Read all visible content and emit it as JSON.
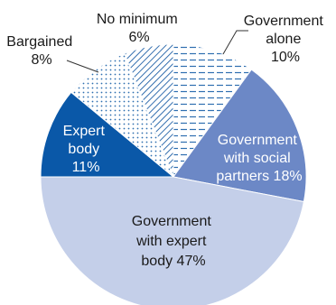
{
  "chart_data": {
    "type": "pie",
    "title": "",
    "slices": [
      {
        "name": "Government alone",
        "value": 10,
        "label_lines": [
          "Government",
          "alone",
          "10%"
        ],
        "pattern": "horizontal-dashes",
        "fill": "#ffffff",
        "ink": "#2f6fb0",
        "text_color": "#1a1a1a"
      },
      {
        "name": "Government with social partners",
        "value": 18,
        "label_lines": [
          "Government",
          "with social",
          "partners 18%"
        ],
        "pattern": "solid",
        "fill": "#6c88c6",
        "ink": "#6c88c6",
        "text_color": "#ffffff"
      },
      {
        "name": "Government with expert body",
        "value": 47,
        "label_lines": [
          "Government",
          "with expert",
          "body 47%"
        ],
        "pattern": "solid",
        "fill": "#c4cfe9",
        "ink": "#c4cfe9",
        "text_color": "#1a1a1a"
      },
      {
        "name": "Expert body",
        "value": 11,
        "label_lines": [
          "Expert",
          "body",
          "11%"
        ],
        "pattern": "solid",
        "fill": "#0a58a8",
        "ink": "#0a58a8",
        "text_color": "#ffffff"
      },
      {
        "name": "Bargained",
        "value": 8,
        "label_lines": [
          "Bargained",
          "8%"
        ],
        "pattern": "dots",
        "fill": "#ffffff",
        "ink": "#2f6fb0",
        "text_color": "#1a1a1a"
      },
      {
        "name": "No minimum",
        "value": 6,
        "label_lines": [
          "No minimum",
          "6%"
        ],
        "pattern": "diagonal-lines",
        "fill": "#ffffff",
        "ink": "#1e5fa6",
        "text_color": "#1a1a1a"
      }
    ],
    "legend": "none"
  }
}
